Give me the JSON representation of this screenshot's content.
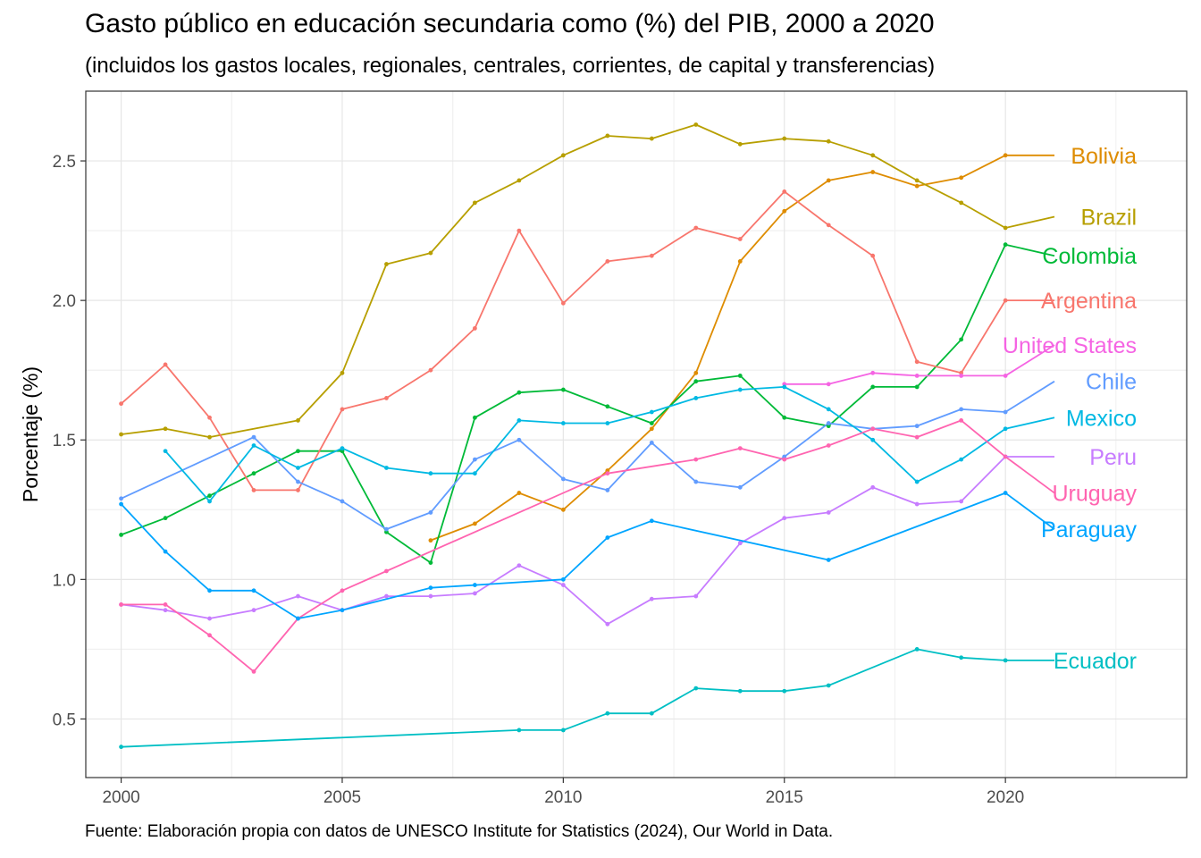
{
  "header": {
    "title": "Gasto público en educación secundaria como (%) del PIB, 2000 a 2020",
    "subtitle": "(incluidos los gastos locales, regionales, centrales, corrientes, de capital y transferencias)"
  },
  "footer": {
    "caption": "Fuente: Elaboración propia con datos de UNESCO Institute for Statistics (2024), Our World in Data."
  },
  "chart_data": {
    "type": "line",
    "title": "Gasto público en educación secundaria como (%) del PIB, 2000 a 2020",
    "subtitle": "(incluidos los gastos locales, regionales, centrales, corrientes, de capital y transferencias)",
    "xlabel": "",
    "ylabel": "Porcentaje (%)",
    "xlim": [
      1999.2,
      2024.1
    ],
    "ylim": [
      0.29,
      2.75
    ],
    "x_ticks": [
      2000,
      2005,
      2010,
      2015,
      2020
    ],
    "y_ticks": [
      0.5,
      1.0,
      1.5,
      2.0,
      2.5
    ],
    "y_tick_labels": [
      "0.5",
      "1.0",
      "1.5",
      "2.0",
      "2.5"
    ],
    "grid": true,
    "legend": "direct labels at right end of lines",
    "series": [
      {
        "name": "Bolivia",
        "color": "#DE8C00",
        "x": [
          2007,
          2008,
          2009,
          2010,
          2011,
          2012,
          2013,
          2014,
          2015,
          2016,
          2017,
          2018,
          2019,
          2020
        ],
        "y": [
          1.14,
          1.2,
          1.31,
          1.25,
          1.39,
          1.54,
          1.74,
          2.14,
          2.32,
          2.43,
          2.46,
          2.41,
          2.44,
          2.52
        ]
      },
      {
        "name": "Brazil",
        "color": "#B79F00",
        "x": [
          2000,
          2001,
          2002,
          2004,
          2005,
          2006,
          2007,
          2008,
          2009,
          2010,
          2011,
          2012,
          2013,
          2014,
          2015,
          2016,
          2017,
          2018,
          2019,
          2020
        ],
        "y": [
          1.52,
          1.54,
          1.51,
          1.57,
          1.74,
          2.13,
          2.17,
          2.35,
          2.43,
          2.52,
          2.59,
          2.58,
          2.63,
          2.56,
          2.58,
          2.57,
          2.52,
          2.43,
          2.35,
          2.26
        ]
      },
      {
        "name": "Colombia",
        "color": "#00BA38",
        "x": [
          2000,
          2001,
          2002,
          2003,
          2004,
          2005,
          2006,
          2007,
          2008,
          2009,
          2010,
          2011,
          2012,
          2013,
          2014,
          2015,
          2016,
          2017,
          2018,
          2019,
          2020
        ],
        "y": [
          1.16,
          1.22,
          1.3,
          1.38,
          1.46,
          1.46,
          1.17,
          1.06,
          1.58,
          1.67,
          1.68,
          1.62,
          1.56,
          1.71,
          1.73,
          1.58,
          1.55,
          1.69,
          1.69,
          1.86,
          2.2
        ]
      },
      {
        "name": "Argentina",
        "color": "#F8766D",
        "x": [
          2000,
          2001,
          2002,
          2003,
          2004,
          2005,
          2006,
          2007,
          2008,
          2009,
          2010,
          2011,
          2012,
          2013,
          2014,
          2015,
          2016,
          2017,
          2018,
          2019,
          2020
        ],
        "y": [
          1.63,
          1.77,
          1.58,
          1.32,
          1.32,
          1.61,
          1.65,
          1.75,
          1.9,
          2.25,
          1.99,
          2.14,
          2.16,
          2.26,
          2.22,
          2.39,
          2.27,
          2.16,
          1.78,
          1.74,
          2.0
        ]
      },
      {
        "name": "United States",
        "color": "#F564E3",
        "x": [
          2015,
          2016,
          2017,
          2018,
          2019,
          2020
        ],
        "y": [
          1.7,
          1.7,
          1.74,
          1.73,
          1.73,
          1.73
        ]
      },
      {
        "name": "Chile",
        "color": "#619CFF",
        "x": [
          2000,
          2003,
          2004,
          2005,
          2006,
          2007,
          2008,
          2009,
          2010,
          2011,
          2012,
          2013,
          2014,
          2015,
          2016,
          2017,
          2018,
          2019,
          2020
        ],
        "y": [
          1.29,
          1.51,
          1.35,
          1.28,
          1.18,
          1.24,
          1.43,
          1.5,
          1.36,
          1.32,
          1.49,
          1.35,
          1.33,
          1.44,
          1.56,
          1.54,
          1.55,
          1.61,
          1.6
        ]
      },
      {
        "name": "Mexico",
        "color": "#00B9E3",
        "x": [
          2001,
          2002,
          2003,
          2004,
          2005,
          2006,
          2007,
          2008,
          2009,
          2010,
          2011,
          2012,
          2013,
          2014,
          2015,
          2016,
          2017,
          2018,
          2019,
          2020
        ],
        "y": [
          1.46,
          1.28,
          1.48,
          1.4,
          1.47,
          1.4,
          1.38,
          1.38,
          1.57,
          1.56,
          1.56,
          1.6,
          1.65,
          1.68,
          1.69,
          1.61,
          1.5,
          1.35,
          1.43,
          1.54
        ]
      },
      {
        "name": "Peru",
        "color": "#C77CFF",
        "x": [
          2000,
          2001,
          2002,
          2003,
          2004,
          2005,
          2006,
          2007,
          2008,
          2009,
          2010,
          2011,
          2012,
          2013,
          2014,
          2015,
          2016,
          2017,
          2018,
          2019,
          2020
        ],
        "y": [
          0.91,
          0.89,
          0.86,
          0.89,
          0.94,
          0.89,
          0.94,
          0.94,
          0.95,
          1.05,
          0.98,
          0.84,
          0.93,
          0.94,
          1.13,
          1.22,
          1.24,
          1.33,
          1.27,
          1.28,
          1.44
        ]
      },
      {
        "name": "Uruguay",
        "color": "#FF64B0",
        "x": [
          2000,
          2001,
          2002,
          2003,
          2004,
          2005,
          2006,
          2011,
          2013,
          2014,
          2015,
          2016,
          2017,
          2018,
          2019,
          2020
        ],
        "y": [
          0.91,
          0.91,
          0.8,
          0.67,
          0.86,
          0.96,
          1.03,
          1.38,
          1.43,
          1.47,
          1.43,
          1.48,
          1.54,
          1.51,
          1.57,
          1.44
        ]
      },
      {
        "name": "Paraguay",
        "color": "#00A5FF",
        "x": [
          2000,
          2001,
          2002,
          2003,
          2004,
          2005,
          2007,
          2008,
          2010,
          2011,
          2012,
          2016,
          2020
        ],
        "y": [
          1.27,
          1.1,
          0.96,
          0.96,
          0.86,
          0.89,
          0.97,
          0.98,
          1.0,
          1.15,
          1.21,
          1.07,
          1.31
        ]
      },
      {
        "name": "Ecuador",
        "color": "#00BFC4",
        "x": [
          2000,
          2009,
          2010,
          2011,
          2012,
          2013,
          2014,
          2015,
          2016,
          2018,
          2019,
          2020
        ],
        "y": [
          0.4,
          0.46,
          0.46,
          0.52,
          0.52,
          0.61,
          0.6,
          0.6,
          0.62,
          0.75,
          0.72,
          0.71
        ]
      }
    ],
    "labels": [
      {
        "series": "Bolivia",
        "text": "Bolivia",
        "y": 2.52
      },
      {
        "series": "Brazil",
        "text": "Brazil",
        "y": 2.3
      },
      {
        "series": "Colombia",
        "text": "Colombia",
        "y": 2.16
      },
      {
        "series": "Argentina",
        "text": "Argentina",
        "y": 2.0
      },
      {
        "series": "United States",
        "text": "United States",
        "y": 1.84
      },
      {
        "series": "Chile",
        "text": "Chile",
        "y": 1.71
      },
      {
        "series": "Mexico",
        "text": "Mexico",
        "y": 1.58
      },
      {
        "series": "Peru",
        "text": "Peru",
        "y": 1.44
      },
      {
        "series": "Uruguay",
        "text": "Uruguay",
        "y": 1.31
      },
      {
        "series": "Paraguay",
        "text": "Paraguay",
        "y": 1.18
      },
      {
        "series": "Ecuador",
        "text": "Ecuador",
        "y": 0.71
      }
    ]
  }
}
